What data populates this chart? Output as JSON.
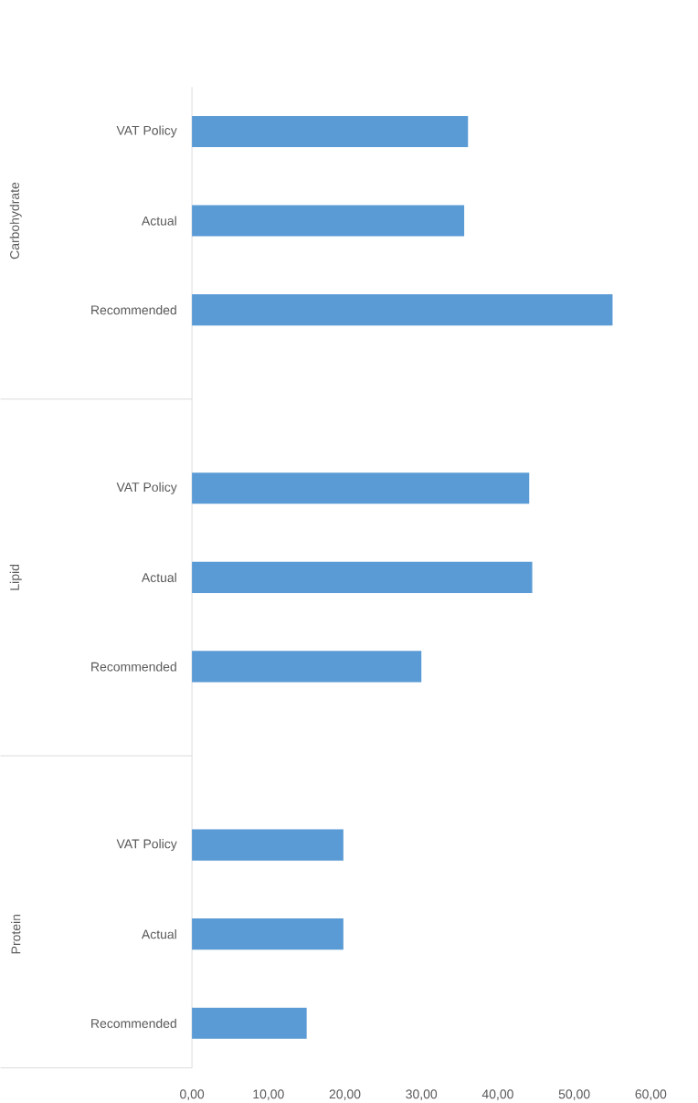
{
  "chart_data": {
    "type": "bar",
    "orientation": "horizontal",
    "categories": [
      "VAT Policy",
      "Actual",
      "Recommended",
      "VAT Policy",
      "Actual",
      "Recommended",
      "VAT Policy",
      "Actual",
      "Recommended"
    ],
    "values": [
      36.1,
      35.6,
      55.0,
      44.1,
      44.5,
      30.0,
      19.8,
      19.8,
      15.0
    ],
    "color": "#5b9bd5",
    "xlim": [
      0,
      60
    ],
    "xticks": [
      {
        "value": 0,
        "label": "0,00"
      },
      {
        "value": 10,
        "label": "10,00"
      },
      {
        "value": 20,
        "label": "20,00"
      },
      {
        "value": 30,
        "label": "30,00"
      },
      {
        "value": 40,
        "label": "40,00"
      },
      {
        "value": 50,
        "label": "50,00"
      },
      {
        "value": 60,
        "label": "60,00"
      }
    ],
    "annotations": [
      "Carbohydrate",
      "Lipid",
      "Protein"
    ]
  }
}
